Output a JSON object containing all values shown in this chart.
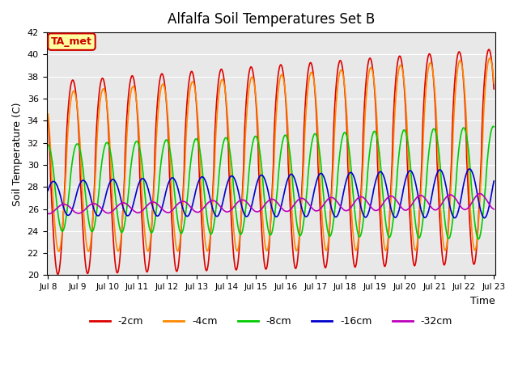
{
  "title": "Alfalfa Soil Temperatures Set B",
  "xlabel": "Time",
  "ylabel": "Soil Temperature (C)",
  "ylim": [
    20,
    42
  ],
  "yticks": [
    20,
    22,
    24,
    26,
    28,
    30,
    32,
    34,
    36,
    38,
    40,
    42
  ],
  "background_color": "#e8e8e8",
  "figure_color": "#ffffff",
  "annotation_text": "TA_met",
  "annotation_facecolor": "#ffffa0",
  "annotation_edgecolor": "#cc0000",
  "line_labels": [
    "-2cm",
    "-4cm",
    "-8cm",
    "-16cm",
    "-32cm"
  ],
  "line_colors": [
    "#dd0000",
    "#ff8800",
    "#00cc00",
    "#0000cc",
    "#bb00bb"
  ],
  "x_start": 8,
  "x_end": 23,
  "xtick_positions": [
    8,
    9,
    10,
    11,
    12,
    13,
    14,
    15,
    16,
    17,
    18,
    19,
    20,
    21,
    22,
    23
  ],
  "xtick_labels": [
    "Jul 8",
    "Jul 9",
    "Jul 10",
    "Jul 11",
    "Jul 12",
    "Jul 13",
    "Jul 14",
    "Jul 15",
    "Jul 16",
    "Jul 17",
    "Jul 18",
    "Jul 19",
    "Jul 20",
    "Jul 21",
    "Jul 22",
    "Jul 23"
  ]
}
